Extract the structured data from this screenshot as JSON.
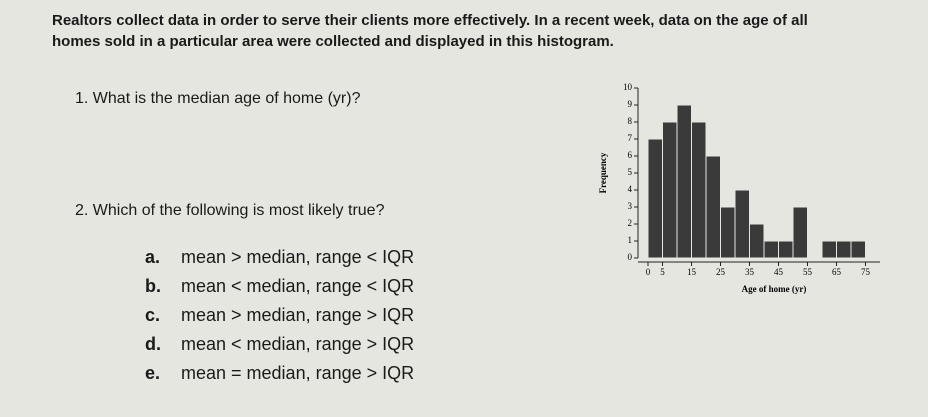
{
  "intro": "Realtors collect data in order to serve their clients more effectively. In a recent week, data on the age of all homes sold in a particular area were collected and displayed in this histogram.",
  "questions": [
    {
      "number": "1.",
      "text": "What is the median age of home (yr)?"
    },
    {
      "number": "2.",
      "text": "Which of the following is most likely true?"
    }
  ],
  "options": [
    {
      "letter": "a.",
      "text": "mean > median, range < IQR"
    },
    {
      "letter": "b.",
      "text": "mean < median, range < IQR"
    },
    {
      "letter": "c.",
      "text": "mean > median, range > IQR"
    },
    {
      "letter": "d.",
      "text": "mean < median, range > IQR"
    },
    {
      "letter": "e.",
      "text": "mean = median, range > IQR"
    }
  ],
  "chart_data": {
    "type": "histogram",
    "ylabel": "Frequency",
    "xlabel": "Age of home (yr)",
    "bins": [
      0,
      5,
      10,
      15,
      20,
      25,
      30,
      35,
      40,
      45,
      50,
      55,
      60,
      65,
      70,
      75,
      80
    ],
    "values": [
      7,
      8,
      9,
      8,
      6,
      3,
      4,
      2,
      1,
      1,
      3,
      0,
      1,
      1,
      1,
      0
    ],
    "color": "#3a3a3a",
    "xlim": [
      0,
      80
    ],
    "xticks": [
      0,
      5,
      15,
      25,
      35,
      45,
      55,
      65,
      75
    ],
    "ylim": [
      0,
      10
    ],
    "yticks": [
      0,
      1,
      2,
      3,
      4,
      5,
      6,
      7,
      8,
      9,
      10
    ]
  }
}
